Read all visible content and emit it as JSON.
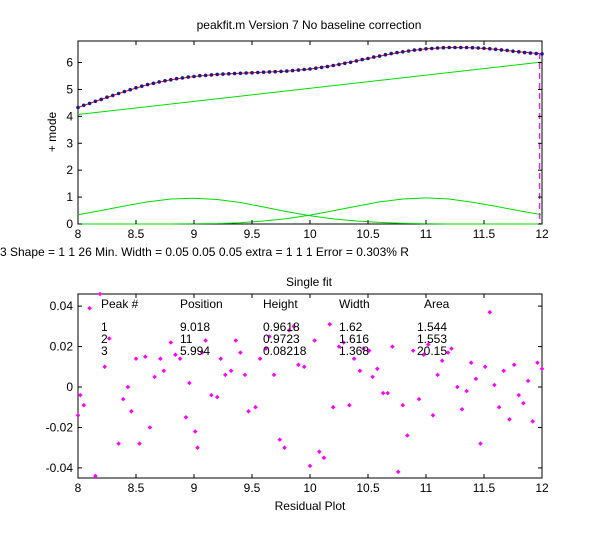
{
  "figure_title": "peakfit.m Version 7    No baseline correction",
  "status_line": "3      Shape = 1   1  26      Min. Width = 0.05          0.05          0.05          extra = 1   1   1      Error = 0.303%    R",
  "colors": {
    "data_points": "#1a1a8c",
    "fit_line": "#ff0000",
    "components": "#00dd00",
    "marker": "#ff00ff",
    "residuals": "#ff00ff",
    "axes": "#000000"
  },
  "chart_data": [
    {
      "type": "line",
      "title": "peakfit.m Version 7    No baseline correction",
      "xlabel": "",
      "ylabel": "+ mode",
      "xlim": [
        8,
        12
      ],
      "ylim": [
        0,
        6.8
      ],
      "xticks": [
        "8",
        "8.5",
        "9",
        "9.5",
        "10",
        "10.5",
        "11",
        "11.5",
        "12"
      ],
      "yticks": [
        "0",
        "1",
        "2",
        "3",
        "4",
        "5",
        "6"
      ],
      "grid": false,
      "data_points": {
        "x": [
          8.0,
          8.05,
          8.1,
          8.15,
          8.2,
          8.25,
          8.3,
          8.35,
          8.4,
          8.45,
          8.5,
          8.55,
          8.6,
          8.65,
          8.7,
          8.75,
          8.8,
          8.85,
          8.9,
          8.95,
          9.0,
          9.05,
          9.1,
          9.15,
          9.2,
          9.25,
          9.3,
          9.35,
          9.4,
          9.45,
          9.5,
          9.55,
          9.6,
          9.65,
          9.7,
          9.75,
          9.8,
          9.85,
          9.9,
          9.95,
          10.0,
          10.05,
          10.1,
          10.15,
          10.2,
          10.25,
          10.3,
          10.35,
          10.4,
          10.45,
          10.5,
          10.55,
          10.6,
          10.65,
          10.7,
          10.75,
          10.8,
          10.85,
          10.9,
          10.95,
          11.0,
          11.05,
          11.1,
          11.15,
          11.2,
          11.25,
          11.3,
          11.35,
          11.4,
          11.45,
          11.5,
          11.55,
          11.6,
          11.65,
          11.7,
          11.75,
          11.8,
          11.85,
          11.9,
          11.95,
          12.0
        ],
        "y": [
          4.33,
          4.41,
          4.48,
          4.56,
          4.63,
          4.71,
          4.78,
          4.85,
          4.92,
          4.99,
          5.06,
          5.12,
          5.18,
          5.23,
          5.28,
          5.32,
          5.36,
          5.4,
          5.43,
          5.46,
          5.48,
          5.51,
          5.52,
          5.54,
          5.56,
          5.57,
          5.58,
          5.59,
          5.6,
          5.61,
          5.62,
          5.63,
          5.64,
          5.65,
          5.66,
          5.67,
          5.68,
          5.7,
          5.72,
          5.74,
          5.76,
          5.79,
          5.82,
          5.85,
          5.89,
          5.93,
          5.97,
          6.01,
          6.06,
          6.11,
          6.15,
          6.2,
          6.24,
          6.29,
          6.33,
          6.37,
          6.4,
          6.43,
          6.46,
          6.48,
          6.51,
          6.52,
          6.54,
          6.55,
          6.56,
          6.56,
          6.56,
          6.56,
          6.55,
          6.54,
          6.53,
          6.51,
          6.49,
          6.47,
          6.45,
          6.42,
          6.4,
          6.37,
          6.35,
          6.33,
          6.32
        ]
      },
      "fit": {
        "x": [
          8.0,
          8.2,
          8.4,
          8.6,
          8.8,
          9.0,
          9.2,
          9.4,
          9.6,
          9.8,
          10.0,
          10.2,
          10.4,
          10.6,
          10.8,
          11.0,
          11.2,
          11.4,
          11.6,
          11.8,
          12.0
        ],
        "y": [
          4.33,
          4.63,
          4.92,
          5.18,
          5.36,
          5.48,
          5.56,
          5.6,
          5.64,
          5.68,
          5.76,
          5.89,
          6.06,
          6.24,
          6.4,
          6.51,
          6.56,
          6.55,
          6.49,
          6.4,
          6.32
        ]
      },
      "components": [
        {
          "x": [
            8.0,
            12.0
          ],
          "y": [
            4.07,
            6.02
          ]
        },
        {
          "x": [
            8.0,
            8.2,
            8.4,
            8.6,
            8.8,
            9.0,
            9.2,
            9.4,
            9.6,
            9.8,
            10.0,
            10.2,
            10.4,
            10.6,
            10.8,
            11.0,
            11.2,
            11.4,
            11.6,
            11.8,
            12.0
          ],
          "y": [
            0.34,
            0.5,
            0.67,
            0.82,
            0.93,
            0.96,
            0.91,
            0.8,
            0.63,
            0.46,
            0.31,
            0.19,
            0.11,
            0.06,
            0.03,
            0.01,
            0.0,
            0.0,
            0.0,
            0.0,
            0.0
          ]
        },
        {
          "x": [
            8.0,
            8.2,
            8.4,
            8.6,
            8.8,
            9.0,
            9.2,
            9.4,
            9.6,
            9.8,
            10.0,
            10.2,
            10.4,
            10.6,
            10.8,
            11.0,
            11.2,
            11.4,
            11.6,
            11.8,
            12.0
          ],
          "y": [
            0.0,
            0.0,
            0.0,
            0.0,
            0.0,
            0.01,
            0.02,
            0.05,
            0.11,
            0.2,
            0.33,
            0.49,
            0.66,
            0.82,
            0.93,
            0.97,
            0.93,
            0.81,
            0.66,
            0.49,
            0.34
          ]
        }
      ],
      "marker_line_x": 11.98
    },
    {
      "type": "scatter",
      "title": "Single fit",
      "xlabel": "Residual Plot",
      "ylabel": "",
      "xlim": [
        8,
        12
      ],
      "ylim": [
        -0.045,
        0.046
      ],
      "xticks": [
        "8",
        "8.5",
        "9",
        "9.5",
        "10",
        "10.5",
        "11",
        "11.5",
        "12"
      ],
      "yticks": [
        "-0.04",
        "-0.02",
        "0",
        "0.02",
        "0.04"
      ],
      "grid": false,
      "residuals": {
        "x": [
          8.0,
          8.02,
          8.05,
          8.1,
          8.15,
          8.19,
          8.23,
          8.27,
          8.35,
          8.39,
          8.43,
          8.46,
          8.5,
          8.53,
          8.58,
          8.62,
          8.66,
          8.71,
          8.74,
          8.8,
          8.84,
          8.88,
          8.93,
          8.96,
          9.01,
          9.03,
          9.07,
          9.1,
          9.15,
          9.2,
          9.23,
          9.27,
          9.32,
          9.36,
          9.4,
          9.44,
          9.47,
          9.53,
          9.57,
          9.62,
          9.65,
          9.69,
          9.74,
          9.78,
          9.82,
          9.86,
          9.9,
          9.95,
          10.0,
          10.04,
          10.08,
          10.12,
          10.17,
          10.2,
          10.25,
          10.29,
          10.34,
          10.38,
          10.43,
          10.46,
          10.51,
          10.54,
          10.58,
          10.63,
          10.67,
          10.71,
          10.76,
          10.8,
          10.84,
          10.89,
          10.94,
          10.98,
          11.02,
          11.06,
          11.1,
          11.14,
          11.19,
          11.22,
          11.27,
          11.31,
          11.35,
          11.39,
          11.43,
          11.47,
          11.51,
          11.55,
          11.59,
          11.63,
          11.67,
          11.72,
          11.76,
          11.8,
          11.84,
          11.88,
          11.92,
          11.96,
          12.0
        ],
        "y": [
          -0.014,
          -0.004,
          -0.009,
          0.039,
          -0.044,
          0.046,
          0.01,
          0.024,
          -0.028,
          -0.006,
          0.0,
          -0.012,
          0.014,
          -0.028,
          0.015,
          -0.02,
          0.005,
          0.014,
          0.008,
          0.022,
          0.016,
          0.014,
          -0.015,
          0.002,
          -0.022,
          -0.03,
          0.017,
          0.023,
          -0.004,
          -0.005,
          0.014,
          0.006,
          0.008,
          0.023,
          0.017,
          0.006,
          -0.012,
          -0.01,
          0.014,
          0.019,
          0.025,
          0.006,
          -0.026,
          -0.03,
          0.028,
          0.03,
          0.011,
          0.01,
          -0.039,
          0.023,
          -0.032,
          -0.035,
          0.031,
          -0.01,
          0.02,
          0.022,
          -0.009,
          0.014,
          0.008,
          0.019,
          0.018,
          0.005,
          0.009,
          -0.003,
          -0.003,
          0.02,
          -0.042,
          -0.009,
          -0.024,
          0.018,
          -0.006,
          0.016,
          0.021,
          -0.014,
          0.006,
          0.013,
          0.017,
          0.019,
          0.0,
          -0.011,
          -0.002,
          0.012,
          0.004,
          -0.028,
          0.01,
          0.037,
          0.001,
          -0.01,
          0.008,
          -0.016,
          0.011,
          -0.004,
          -0.008,
          0.003,
          -0.017,
          0.012,
          0.009
        ]
      },
      "peak_table": {
        "headers": [
          "Peak #",
          "Position",
          "Height",
          "Width",
          "Area"
        ],
        "rows": [
          [
            "1",
            "9.018",
            "0.9618",
            "1.62",
            "1.544"
          ],
          [
            "2",
            "11",
            "0.9723",
            "1.616",
            "1.553"
          ],
          [
            "3",
            "5.994",
            "0.08218",
            "1.368",
            "20.15"
          ]
        ]
      }
    }
  ]
}
